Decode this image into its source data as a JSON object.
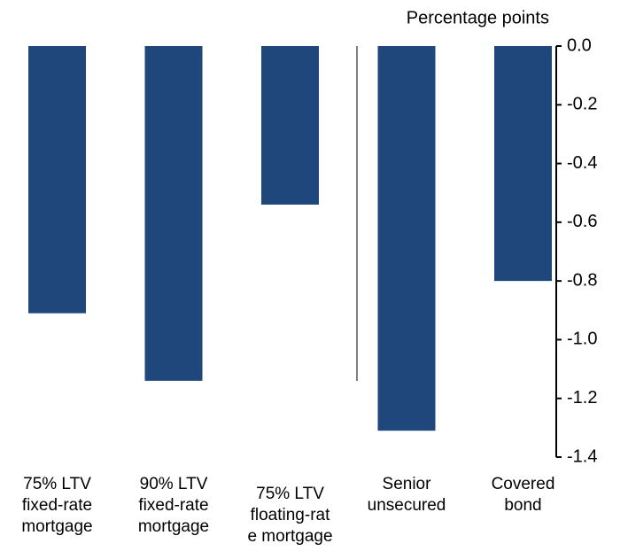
{
  "chart_data": {
    "type": "bar",
    "y_axis_label": "Percentage points",
    "categories": [
      "75% LTV\nfixed-rate\nmortgage",
      "90% LTV\nfixed-rate\nmortgage",
      "75% LTV\nfloating-rat\ne mortgage",
      "Senior\nunsecured",
      "Covered\nbond"
    ],
    "values": [
      -0.91,
      -1.14,
      -0.54,
      -1.31,
      -0.8
    ],
    "color": "#1f477b",
    "ylim": [
      -1.4,
      0
    ],
    "yticks": [
      {
        "value": 0,
        "label": "0.0"
      },
      -0.2,
      -0.4,
      -0.6,
      -0.8,
      {
        "value": -1,
        "label": "-1.0"
      },
      -1.2,
      -1.4
    ]
  }
}
